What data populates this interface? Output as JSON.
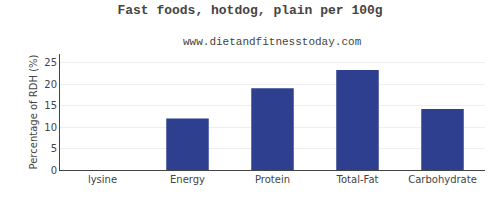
{
  "chart_data": {
    "type": "bar",
    "title": "Fast foods, hotdog, plain per 100g",
    "subtitle": "www.dietandfitnesstoday.com",
    "categories": [
      "lysine",
      "Energy",
      "Protein",
      "Total-Fat",
      "Carbohydrate"
    ],
    "values": [
      0,
      12,
      19,
      23.3,
      14.2
    ],
    "color": "#2e3f8f",
    "ylabel": "Percentage of RDH (%)",
    "ylim": [
      0,
      27
    ],
    "yticks": [
      0,
      5,
      10,
      15,
      20,
      25
    ],
    "grid": true
  }
}
